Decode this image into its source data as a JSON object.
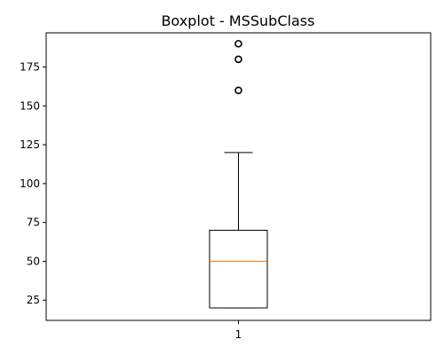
{
  "chart_data": {
    "type": "boxplot",
    "title": "Boxplot - MSSubClass",
    "xlabel": "",
    "ylabel": "",
    "categories": [
      "1"
    ],
    "ylim": [
      12,
      197
    ],
    "y_ticks": [
      25,
      50,
      75,
      100,
      125,
      150,
      175
    ],
    "grid": false,
    "box": {
      "whisker_low": 20,
      "q1": 20,
      "median": 50,
      "q3": 70,
      "whisker_high": 120,
      "outliers": [
        160,
        180,
        190
      ]
    },
    "colors": {
      "box": "#000000",
      "median": "#ff7f0e",
      "outlier": "#000000"
    }
  }
}
